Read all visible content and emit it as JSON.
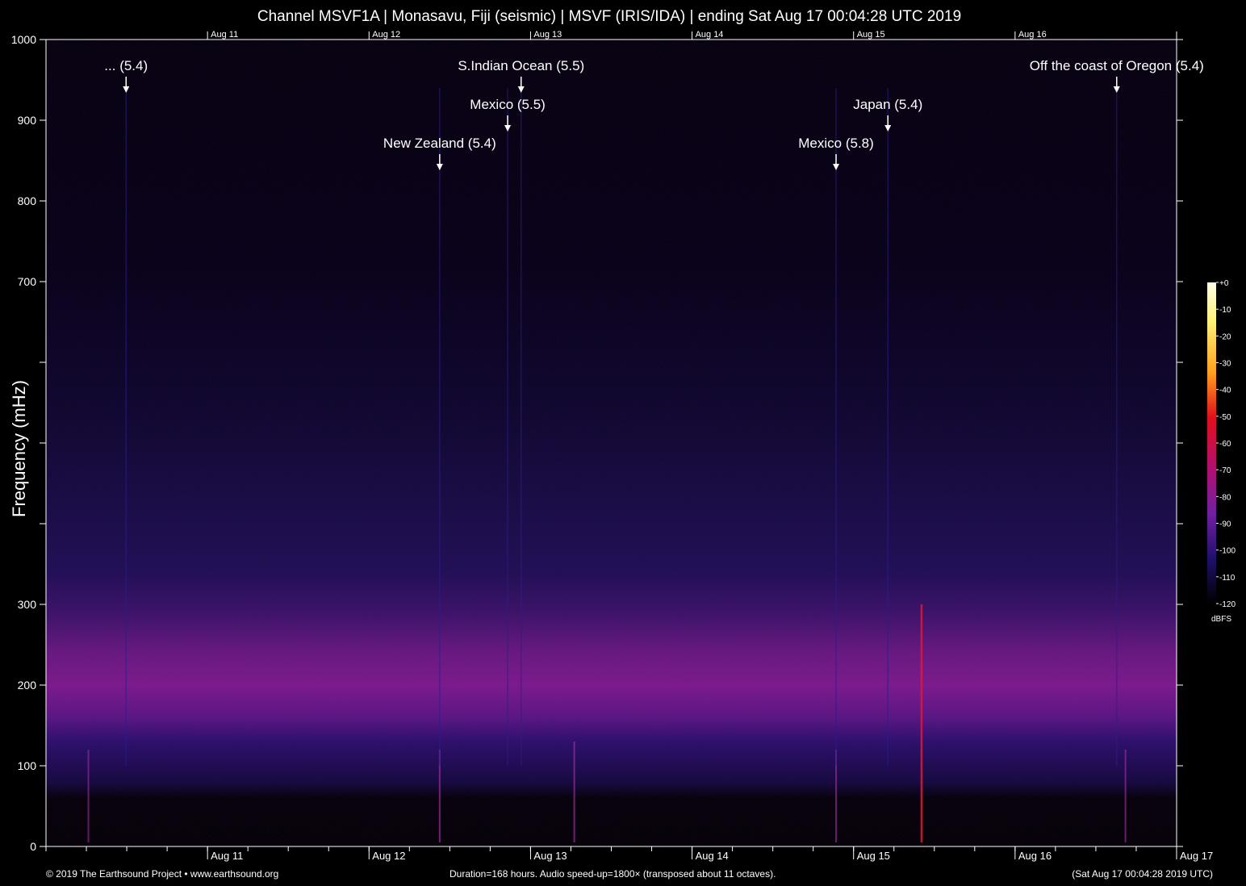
{
  "title": "Channel MSVF1A | Monasavu, Fiji (seismic) | MSVF (IRIS/IDA) | ending Sat Aug 17 00:04:28 UTC 2019",
  "footer": {
    "left": "© 2019 The Earthsound Project • www.earthsound.org",
    "center": "Duration=168 hours. Audio speed-up=1800× (transposed about 11 octaves).",
    "right": "(Sat Aug 17 00:04:28 2019 UTC)"
  },
  "colors": {
    "background": "#000000",
    "axis": "#ffffff",
    "noise_band": "#7a1a8c",
    "quiet": "#10063a"
  },
  "chart_data": {
    "type": "heatmap",
    "title": "Channel MSVF1A | Monasavu, Fiji (seismic) | MSVF (IRIS/IDA) | ending Sat Aug 17 00:04:28 UTC 2019",
    "xlabel": "",
    "ylabel": "Frequency (mHz)",
    "x_unit": "hours",
    "xlim": [
      0,
      168
    ],
    "ylim": [
      0,
      1000
    ],
    "y_ticks": [
      0,
      100,
      200,
      300,
      400,
      500,
      600,
      700,
      800,
      900,
      1000
    ],
    "y_tick_labels": [
      "0",
      "100",
      "200",
      "300",
      "",
      "",
      "",
      "700",
      "800",
      "900",
      "1000"
    ],
    "x_major_ticks": [
      {
        "label": "Aug 11",
        "hour": 24
      },
      {
        "label": "Aug 12",
        "hour": 48
      },
      {
        "label": "Aug 13",
        "hour": 72
      },
      {
        "label": "Aug 14",
        "hour": 96
      },
      {
        "label": "Aug 15",
        "hour": 120
      },
      {
        "label": "Aug 16",
        "hour": 144
      },
      {
        "label": "Aug 17",
        "hour": 168
      }
    ],
    "top_tick_labels": [
      "Aug 11",
      "Aug 12",
      "Aug 13",
      "Aug 14",
      "Aug 15",
      "Aug 16"
    ],
    "minor_tick_hours": 6,
    "grid": false,
    "background_band_mhz": [
      130,
      270
    ],
    "events": [
      {
        "label": "... (5.4)",
        "hour": 11.9,
        "row": 0
      },
      {
        "label": "S.Indian Ocean (5.5)",
        "hour": 70.6,
        "row": 0
      },
      {
        "label": "Off the coast of Oregon (5.4)",
        "hour": 159.1,
        "row": 0
      },
      {
        "label": "Mexico (5.5)",
        "hour": 68.6,
        "row": 1
      },
      {
        "label": "Japan (5.4)",
        "hour": 125.1,
        "row": 1
      },
      {
        "label": "New Zealand (5.4)",
        "hour": 58.5,
        "row": 2
      },
      {
        "label": "Mexico (5.8)",
        "hour": 117.4,
        "row": 2
      }
    ],
    "signals": [
      {
        "hour": 6.3,
        "top_mhz": 120,
        "strength": 0.5
      },
      {
        "hour": 58.5,
        "top_mhz": 120,
        "strength": 0.7
      },
      {
        "hour": 78.5,
        "top_mhz": 130,
        "strength": 0.7
      },
      {
        "hour": 117.4,
        "top_mhz": 120,
        "strength": 0.6
      },
      {
        "hour": 130.1,
        "top_mhz": 300,
        "strength": 1.0
      },
      {
        "hour": 160.4,
        "top_mhz": 120,
        "strength": 0.6
      }
    ],
    "colorbar": {
      "unit": "dBFS",
      "range": [
        -120,
        0
      ],
      "ticks": [
        0,
        -10,
        -20,
        -30,
        -40,
        -50,
        -60,
        -70,
        -80,
        -90,
        -100,
        -110,
        -120
      ]
    }
  }
}
